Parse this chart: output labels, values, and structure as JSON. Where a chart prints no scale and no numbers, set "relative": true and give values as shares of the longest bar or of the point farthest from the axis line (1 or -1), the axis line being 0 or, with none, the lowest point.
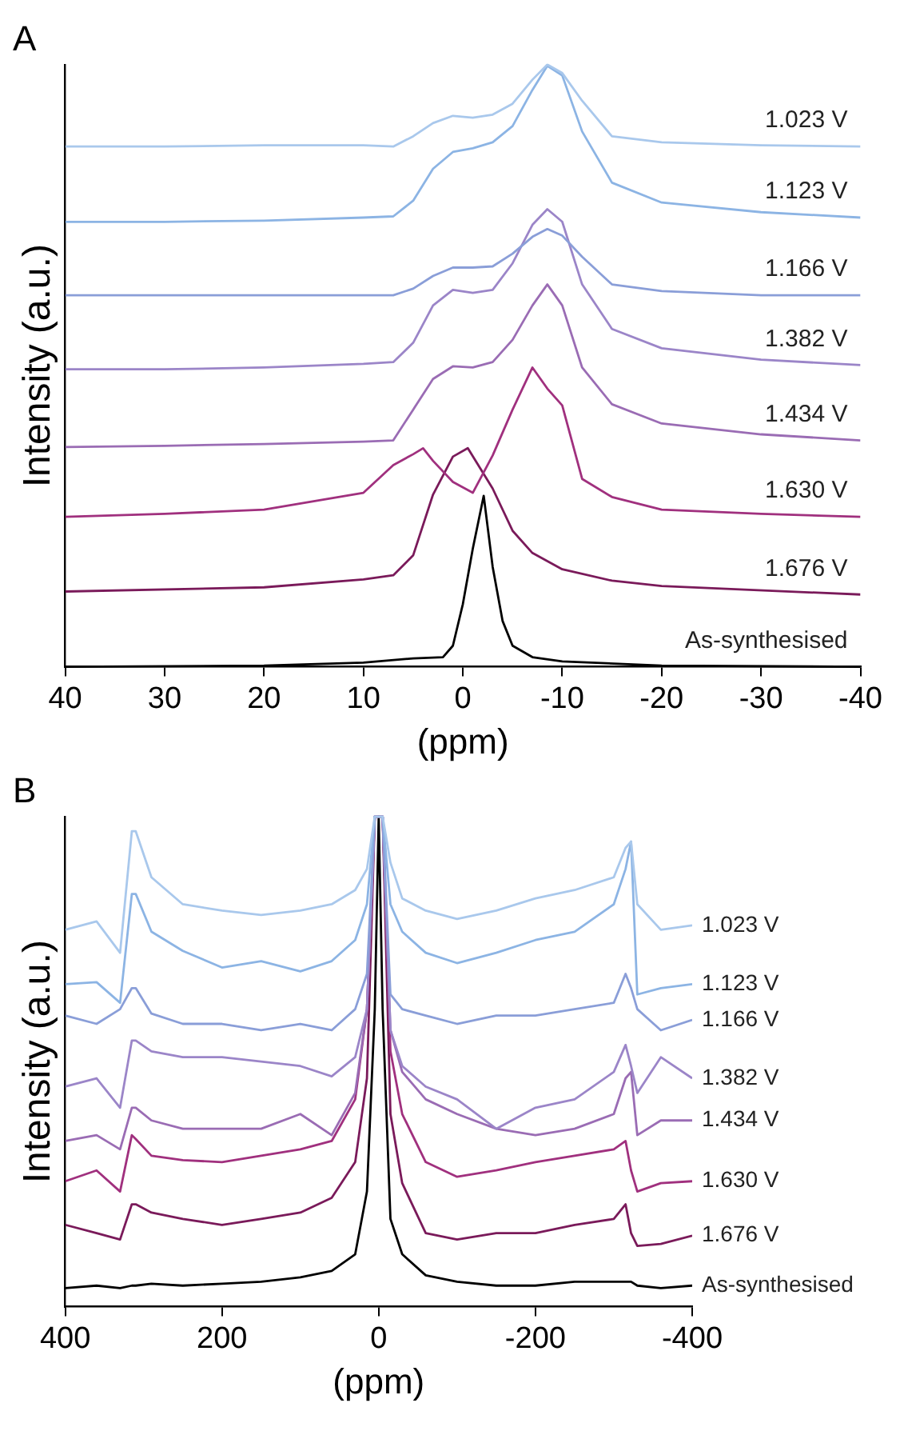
{
  "chart_data": [
    {
      "type": "line",
      "title": "A",
      "xlabel": "(ppm)",
      "ylabel": "Intensity (a.u.)",
      "relative": true,
      "grid": false,
      "legend": false,
      "xlim": [
        40,
        -40
      ],
      "xticks": [
        40,
        30,
        20,
        10,
        0,
        -10,
        -20,
        -30,
        -40
      ],
      "x": [
        40,
        30,
        20,
        10,
        7,
        5,
        3,
        1,
        -1,
        -3,
        -5,
        -7,
        -8.5,
        -10,
        -12,
        -15,
        -20,
        -30,
        -40
      ],
      "series": [
        {
          "name": "1.023 V",
          "color": "#a9c8ec",
          "values": [
            0.864,
            0.864,
            0.866,
            0.866,
            0.864,
            0.881,
            0.903,
            0.915,
            0.912,
            0.917,
            0.935,
            0.975,
            1,
            0.986,
            0.94,
            0.881,
            0.871,
            0.866,
            0.864
          ]
        },
        {
          "name": "1.123 V",
          "color": "#8cb4e4",
          "values": [
            0.739,
            0.739,
            0.741,
            0.746,
            0.748,
            0.774,
            0.827,
            0.855,
            0.861,
            0.871,
            0.898,
            0.958,
            0.998,
            0.982,
            0.889,
            0.804,
            0.771,
            0.755,
            0.746
          ]
        },
        {
          "name": "1.166 V",
          "color": "#8a9ed8",
          "values": [
            0.617,
            0.617,
            0.617,
            0.617,
            0.617,
            0.628,
            0.649,
            0.663,
            0.663,
            0.665,
            0.686,
            0.714,
            0.727,
            0.716,
            0.681,
            0.635,
            0.624,
            0.617,
            0.617
          ]
        },
        {
          "name": "1.382 V",
          "color": "#9b85c8",
          "values": [
            0.494,
            0.494,
            0.497,
            0.503,
            0.506,
            0.538,
            0.6,
            0.626,
            0.621,
            0.626,
            0.67,
            0.734,
            0.76,
            0.739,
            0.635,
            0.561,
            0.529,
            0.51,
            0.501
          ]
        },
        {
          "name": "1.434 V",
          "color": "#9a6cb4",
          "values": [
            0.365,
            0.367,
            0.37,
            0.374,
            0.376,
            0.427,
            0.478,
            0.499,
            0.497,
            0.506,
            0.543,
            0.6,
            0.635,
            0.6,
            0.497,
            0.436,
            0.404,
            0.386,
            0.376
          ]
        },
        {
          "name": "1.630 V",
          "color": "#a0307e",
          "x": [
            40,
            30,
            20,
            10,
            7,
            5,
            4,
            3,
            1,
            -1,
            -3,
            -5,
            -7,
            -8.5,
            -10,
            -12,
            -15,
            -20,
            -30,
            -40
          ],
          "values": [
            0.249,
            0.254,
            0.261,
            0.289,
            0.335,
            0.353,
            0.363,
            0.342,
            0.307,
            0.289,
            0.351,
            0.427,
            0.497,
            0.462,
            0.434,
            0.312,
            0.282,
            0.261,
            0.254,
            0.249
          ]
        },
        {
          "name": "1.676 V",
          "color": "#7a1a5a",
          "x": [
            40,
            20,
            10,
            7,
            5,
            3,
            1,
            -0.5,
            -3,
            -5,
            -7,
            -10,
            -15,
            -20,
            -40
          ],
          "values": [
            0.125,
            0.132,
            0.145,
            0.152,
            0.185,
            0.286,
            0.349,
            0.363,
            0.296,
            0.226,
            0.189,
            0.162,
            0.143,
            0.134,
            0.12
          ]
        },
        {
          "name": "As-synthesised",
          "color": "#000000",
          "x": [
            40,
            20,
            10,
            5,
            2,
            1,
            0,
            -1,
            -2.1,
            -3,
            -4,
            -5,
            -7,
            -10,
            -20,
            -40
          ],
          "values": [
            0,
            0.002,
            0.007,
            0.014,
            0.016,
            0.035,
            0.104,
            0.196,
            0.284,
            0.166,
            0.076,
            0.035,
            0.016,
            0.009,
            0.002,
            0
          ]
        }
      ]
    },
    {
      "type": "line",
      "title": "B",
      "xlabel": "(ppm)",
      "ylabel": "Intensity (a.u.)",
      "relative": true,
      "grid": false,
      "legend": false,
      "xlim": [
        400,
        -400
      ],
      "xticks": [
        400,
        200,
        0,
        -200,
        -400
      ],
      "x": [
        400,
        360,
        330,
        315,
        310,
        290,
        250,
        200,
        150,
        100,
        60,
        30,
        15,
        5,
        0,
        -5,
        -15,
        -30,
        -60,
        -100,
        -150,
        -200,
        -250,
        -300,
        -315,
        -322,
        -330,
        -360,
        -400
      ],
      "series": [
        {
          "name": "1.023 V",
          "color": "#a9c8ec",
          "values": [
            0.769,
            0.786,
            0.722,
            0.97,
            0.97,
            0.876,
            0.821,
            0.808,
            0.799,
            0.808,
            0.821,
            0.85,
            0.893,
            1,
            1,
            1,
            0.906,
            0.833,
            0.808,
            0.791,
            0.808,
            0.833,
            0.85,
            0.876,
            0.936,
            0.949,
            0.821,
            0.769,
            0.778
          ]
        },
        {
          "name": "1.123 V",
          "color": "#8cb4e4",
          "values": [
            0.658,
            0.662,
            0.62,
            0.842,
            0.842,
            0.765,
            0.726,
            0.692,
            0.705,
            0.684,
            0.705,
            0.748,
            0.821,
            1,
            1,
            1,
            0.821,
            0.765,
            0.722,
            0.701,
            0.722,
            0.748,
            0.765,
            0.821,
            0.893,
            0.949,
            0.637,
            0.65,
            0.658
          ]
        },
        {
          "name": "1.166 V",
          "color": "#8a9ed8",
          "values": [
            0.594,
            0.577,
            0.607,
            0.65,
            0.65,
            0.598,
            0.577,
            0.577,
            0.564,
            0.577,
            0.564,
            0.607,
            0.679,
            1,
            1,
            1,
            0.637,
            0.607,
            0.594,
            0.577,
            0.594,
            0.594,
            0.607,
            0.62,
            0.679,
            0.65,
            0.607,
            0.564,
            0.585
          ]
        },
        {
          "name": "1.382 V",
          "color": "#9b85c8",
          "values": [
            0.449,
            0.466,
            0.406,
            0.543,
            0.543,
            0.521,
            0.509,
            0.509,
            0.5,
            0.491,
            0.47,
            0.509,
            0.607,
            1,
            1,
            1,
            0.564,
            0.491,
            0.449,
            0.423,
            0.363,
            0.406,
            0.423,
            0.479,
            0.534,
            0.491,
            0.436,
            0.509,
            0.466
          ]
        },
        {
          "name": "1.434 V",
          "color": "#9a6cb4",
          "values": [
            0.338,
            0.35,
            0.321,
            0.406,
            0.406,
            0.38,
            0.363,
            0.363,
            0.363,
            0.393,
            0.35,
            0.436,
            0.607,
            1,
            1,
            1,
            0.564,
            0.479,
            0.423,
            0.393,
            0.363,
            0.35,
            0.363,
            0.393,
            0.466,
            0.479,
            0.35,
            0.38,
            0.38
          ]
        },
        {
          "name": "1.630 V",
          "color": "#a0307e",
          "values": [
            0.256,
            0.278,
            0.235,
            0.35,
            0.342,
            0.308,
            0.299,
            0.295,
            0.308,
            0.321,
            0.338,
            0.423,
            0.607,
            1,
            1,
            1,
            0.521,
            0.393,
            0.295,
            0.265,
            0.278,
            0.295,
            0.308,
            0.321,
            0.338,
            0.278,
            0.235,
            0.252,
            0.256
          ]
        },
        {
          "name": "1.676 V",
          "color": "#7a1a5a",
          "values": [
            0.167,
            0.15,
            0.137,
            0.209,
            0.209,
            0.192,
            0.179,
            0.167,
            0.179,
            0.192,
            0.222,
            0.295,
            0.466,
            1,
            1,
            1,
            0.393,
            0.252,
            0.15,
            0.137,
            0.15,
            0.15,
            0.167,
            0.179,
            0.209,
            0.15,
            0.124,
            0.128,
            0.145
          ]
        },
        {
          "name": "As-synthesised",
          "color": "#000000",
          "values": [
            0.038,
            0.043,
            0.038,
            0.043,
            0.043,
            0.047,
            0.043,
            0.047,
            0.051,
            0.06,
            0.073,
            0.107,
            0.235,
            0.607,
            1,
            0.607,
            0.179,
            0.107,
            0.064,
            0.051,
            0.043,
            0.043,
            0.051,
            0.051,
            0.051,
            0.051,
            0.043,
            0.038,
            0.043
          ]
        }
      ]
    }
  ]
}
